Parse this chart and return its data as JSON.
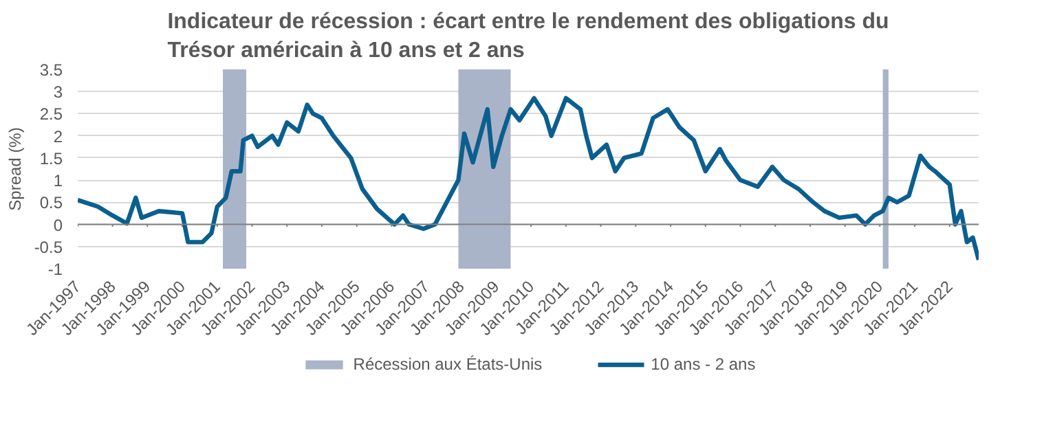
{
  "chart_data": {
    "type": "line",
    "title": "Indicateur de récession : écart entre le rendement des obligations du\nTrésor américain à 10 ans et 2 ans",
    "ylabel": "Spread (%)",
    "x": [
      "1997-01",
      "1997-08",
      "1998-01",
      "1998-06",
      "1998-09",
      "1998-11",
      "1999-05",
      "2000-01",
      "2000-03",
      "2000-08",
      "2000-11",
      "2001-01",
      "2001-04",
      "2001-06",
      "2001-09",
      "2001-10",
      "2002-01",
      "2002-03",
      "2002-08",
      "2002-10",
      "2003-01",
      "2003-05",
      "2003-08",
      "2003-10",
      "2004-01",
      "2004-05",
      "2004-11",
      "2005-03",
      "2005-08",
      "2006-02",
      "2006-05",
      "2006-07",
      "2006-12",
      "2007-04",
      "2007-08",
      "2007-12",
      "2008-02",
      "2008-05",
      "2008-10",
      "2008-12",
      "2009-03",
      "2009-06",
      "2009-09",
      "2010-02",
      "2010-06",
      "2010-08",
      "2011-01",
      "2011-06",
      "2011-08",
      "2011-10",
      "2012-03",
      "2012-06",
      "2012-09",
      "2013-03",
      "2013-07",
      "2013-12",
      "2014-04",
      "2014-09",
      "2015-01",
      "2015-06",
      "2015-08",
      "2016-01",
      "2016-07",
      "2016-12",
      "2017-04",
      "2017-09",
      "2018-02",
      "2018-06",
      "2018-11",
      "2019-05",
      "2019-08",
      "2019-11",
      "2020-02",
      "2020-04",
      "2020-07",
      "2020-11",
      "2021-03",
      "2021-06",
      "2021-08",
      "2022-01",
      "2022-03",
      "2022-05",
      "2022-07",
      "2022-09",
      "2022-11"
    ],
    "series": [
      {
        "name": "10 ans - 2 ans",
        "color": "#0b5f8f",
        "values": [
          0.55,
          0.4,
          0.2,
          0.02,
          0.6,
          0.15,
          0.3,
          0.25,
          -0.4,
          -0.4,
          -0.2,
          0.4,
          0.6,
          1.2,
          1.2,
          1.9,
          2.0,
          1.75,
          2.0,
          1.8,
          2.3,
          2.1,
          2.7,
          2.5,
          2.4,
          2.0,
          1.5,
          0.8,
          0.35,
          0.0,
          0.2,
          0.0,
          -0.1,
          0.0,
          0.5,
          1.0,
          2.05,
          1.4,
          2.6,
          1.3,
          2.0,
          2.6,
          2.35,
          2.85,
          2.45,
          2.0,
          2.85,
          2.6,
          2.0,
          1.5,
          1.8,
          1.2,
          1.5,
          1.6,
          2.4,
          2.6,
          2.2,
          1.9,
          1.2,
          1.7,
          1.45,
          1.0,
          0.85,
          1.3,
          1.0,
          0.8,
          0.5,
          0.3,
          0.15,
          0.2,
          0.0,
          0.2,
          0.3,
          0.6,
          0.5,
          0.65,
          1.55,
          1.3,
          1.2,
          0.9,
          0.0,
          0.3,
          -0.4,
          -0.3,
          -0.8
        ]
      }
    ],
    "bands": [
      {
        "axis": "x",
        "from": "2001-03",
        "to": "2001-11",
        "label": "Récession aux États-Unis",
        "color": "#aab4c8"
      },
      {
        "axis": "x",
        "from": "2007-12",
        "to": "2009-06",
        "color": "#aab4c8"
      },
      {
        "axis": "x",
        "from": "2020-02",
        "to": "2020-04",
        "color": "#aab4c8"
      }
    ],
    "xlim": [
      "1997-01",
      "2022-11"
    ],
    "xticks": [
      {
        "value": "1997-01",
        "label": "Jan-1997"
      },
      {
        "value": "1998-01",
        "label": "Jan-1998"
      },
      {
        "value": "1999-01",
        "label": "Jan-1999"
      },
      {
        "value": "2000-01",
        "label": "Jan-2000"
      },
      {
        "value": "2001-01",
        "label": "Jan-2001"
      },
      {
        "value": "2002-01",
        "label": "Jan-2002"
      },
      {
        "value": "2003-01",
        "label": "Jan-2003"
      },
      {
        "value": "2004-01",
        "label": "Jan-2004"
      },
      {
        "value": "2005-01",
        "label": "Jan-2005"
      },
      {
        "value": "2006-01",
        "label": "Jan-2006"
      },
      {
        "value": "2007-01",
        "label": "Jan-2007"
      },
      {
        "value": "2008-01",
        "label": "Jan-2008"
      },
      {
        "value": "2009-01",
        "label": "Jan-2009"
      },
      {
        "value": "2010-01",
        "label": "Jan-2010"
      },
      {
        "value": "2011-01",
        "label": "Jan-2011"
      },
      {
        "value": "2012-01",
        "label": "Jan-2012"
      },
      {
        "value": "2013-01",
        "label": "Jan-2013"
      },
      {
        "value": "2014-01",
        "label": "Jan-2014"
      },
      {
        "value": "2015-01",
        "label": "Jan-2015"
      },
      {
        "value": "2016-01",
        "label": "Jan-2016"
      },
      {
        "value": "2017-01",
        "label": "Jan-2017"
      },
      {
        "value": "2018-01",
        "label": "Jan-2018"
      },
      {
        "value": "2019-01",
        "label": "Jan-2019"
      },
      {
        "value": "2020-01",
        "label": "Jan-2020"
      },
      {
        "value": "2021-01",
        "label": "Jan-2021"
      },
      {
        "value": "2022-01",
        "label": "Jan-2022"
      }
    ],
    "ylim": [
      -1,
      3.5
    ],
    "yticks": [
      -1,
      -0.5,
      0,
      0.5,
      1,
      1.5,
      2,
      2.5,
      3,
      3.5
    ],
    "grid": "y",
    "legend": "bottom",
    "line_style": "solid",
    "marker": "none"
  }
}
